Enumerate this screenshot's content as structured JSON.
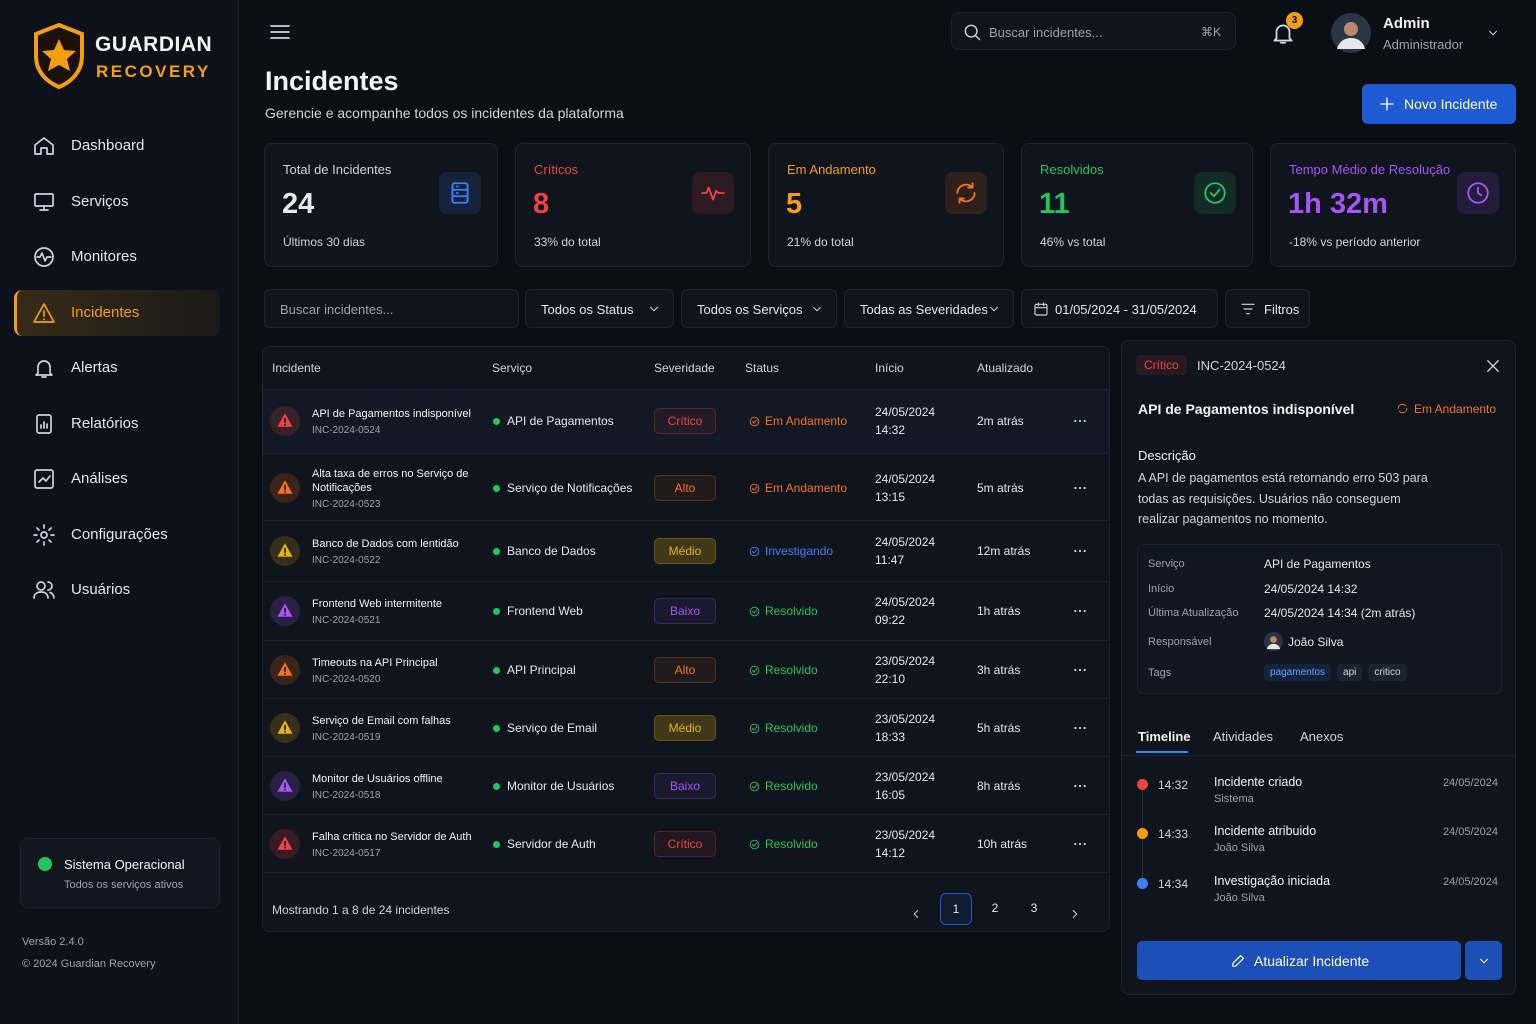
{
  "brand": {
    "name": "GUARDIAN",
    "sub": "RECOVERY"
  },
  "nav": [
    {
      "label": "Dashboard",
      "active": false
    },
    {
      "label": "Serviços",
      "active": false
    },
    {
      "label": "Monitores",
      "active": false
    },
    {
      "label": "Incidentes",
      "active": true
    },
    {
      "label": "Alertas",
      "active": false
    },
    {
      "label": "Relatórios",
      "active": false
    },
    {
      "label": "Análises",
      "active": false
    },
    {
      "label": "Configurações",
      "active": false
    },
    {
      "label": "Usuários",
      "active": false
    }
  ],
  "system_status": {
    "title": "Sistema Operacional",
    "subtitle": "Todos os serviços ativos"
  },
  "footer": {
    "version": "Versão 2.4.0",
    "copyright": "© 2024 Guardian Recovery"
  },
  "topbar": {
    "search": "Buscar incidentes...",
    "shortcut": "⌘K",
    "notifications": 3,
    "user_name": "Admin",
    "user_role": "Administrador"
  },
  "header": {
    "title": "Incidentes",
    "subtitle": "Gerencie e acompanhe todos os incidentes da plataforma",
    "button": "Novo Incidente"
  },
  "stats": [
    {
      "label": "Total de Incidentes",
      "value": 24,
      "note": "Últimos 30 dias",
      "color": "#3b82f6",
      "text_color": "#e5e7eb"
    },
    {
      "label": "Críticos",
      "value": 8,
      "note": "33% do total",
      "color": "#ef4444",
      "text_color": "#ef4444"
    },
    {
      "label": "Em Andamento",
      "value": 5,
      "note": "21% do total",
      "color": "#f97316",
      "text_color": "#f59e0b"
    },
    {
      "label": "Resolvidos",
      "value": 11,
      "note": "46% vs total",
      "color": "#22c55e",
      "text_color": "#22c55e"
    },
    {
      "label": "Tempo Médio de Resolução",
      "value": "1h 32m",
      "note": "-18% vs período anterior",
      "color": "#a855f7",
      "text_color": "#a855f7"
    }
  ],
  "filters": {
    "search": "Buscar incidentes...",
    "status": "Todos os Status",
    "services": "Todos os Serviços",
    "severities": "Todas as Severidades",
    "dates": "01/05/2024 - 31/05/2024",
    "button": "Filtros"
  },
  "table": {
    "columns": [
      "Incidente",
      "Serviço",
      "Severidade",
      "Status",
      "Início",
      "Atualizado"
    ],
    "rows": [
      {
        "title": "API de Pagamentos indisponível",
        "id": "INC-2024-0524",
        "service": "API de Pagamentos",
        "severity": "Crítico",
        "severity_color": "#ef4444",
        "status": "Em Andamento",
        "status_color": "#f97316",
        "date": "24/05/2024",
        "time": "14:32",
        "updated": "2m atrás"
      },
      {
        "title": "Alta taxa de erros no Serviço de Notificações",
        "id": "INC-2024-0523",
        "service": "Serviço de Notificações",
        "severity": "Alto",
        "severity_color": "#f97316",
        "status": "Em Andamento",
        "status_color": "#f97316",
        "date": "24/05/2024",
        "time": "13:15",
        "updated": "5m atrás"
      },
      {
        "title": "Banco de Dados com lentidão",
        "id": "INC-2024-0522",
        "service": "Banco de Dados",
        "severity": "Médio",
        "severity_color": "#eab308",
        "status": "Investigando",
        "status_color": "#3b82f6",
        "date": "24/05/2024",
        "time": "11:47",
        "updated": "12m atrás"
      },
      {
        "title": "Frontend Web intermitente",
        "id": "INC-2024-0521",
        "service": "Frontend Web",
        "severity": "Baixo",
        "severity_color": "#a855f7",
        "status": "Resolvido",
        "status_color": "#22c55e",
        "date": "24/05/2024",
        "time": "09:22",
        "updated": "1h atrás"
      },
      {
        "title": "Timeouts na API Principal",
        "id": "INC-2024-0520",
        "service": "API Principal",
        "severity": "Alto",
        "severity_color": "#f97316",
        "status": "Resolvido",
        "status_color": "#22c55e",
        "date": "23/05/2024",
        "time": "22:10",
        "updated": "3h atrás"
      },
      {
        "title": "Serviço de Email com falhas",
        "id": "INC-2024-0519",
        "service": "Serviço de Email",
        "severity": "Médio",
        "severity_color": "#eab308",
        "status": "Resolvido",
        "status_color": "#22c55e",
        "date": "23/05/2024",
        "time": "18:33",
        "updated": "5h atrás"
      },
      {
        "title": "Monitor de Usuários offline",
        "id": "INC-2024-0518",
        "service": "Monitor de Usuários",
        "severity": "Baixo",
        "severity_color": "#a855f7",
        "status": "Resolvido",
        "status_color": "#22c55e",
        "date": "23/05/2024",
        "time": "16:05",
        "updated": "8h atrás"
      },
      {
        "title": "Falha crítica no Servidor de Auth",
        "id": "INC-2024-0517",
        "service": "Servidor de Auth",
        "severity": "Crítico",
        "severity_color": "#ef4444",
        "status": "Resolvido",
        "status_color": "#22c55e",
        "date": "23/05/2024",
        "time": "14:12",
        "updated": "10h atrás"
      }
    ],
    "summary": "Mostrando 1 a 8 de 24 incidentes",
    "pages": [
      1,
      2,
      3
    ]
  },
  "detail": {
    "severity": "Crítico",
    "severity_color": "#ef4444",
    "id": "INC-2024-0524",
    "title": "API de Pagamentos indisponível",
    "status": "Em Andamento",
    "status_color": "#f97316",
    "description_label": "Descrição",
    "description": "A API de pagamentos está retornando erro 503 para todas as requisições. Usuários não conseguem realizar pagamentos no momento.",
    "fields": [
      {
        "label": "Serviço",
        "value": "API de Pagamentos"
      },
      {
        "label": "Início",
        "value": "24/05/2024 14:32"
      },
      {
        "label": "Última Atualização",
        "value": "24/05/2024 14:34 (2m atrás)"
      },
      {
        "label": "Responsável",
        "value": "João Silva"
      }
    ],
    "tags_label": "Tags",
    "tags": [
      "pagamentos",
      "api",
      "critico"
    ],
    "tabs": [
      "Timeline",
      "Atividades",
      "Anexos"
    ],
    "timeline": [
      {
        "time": "14:32",
        "title": "Incidente criado",
        "by": "Sistema",
        "date": "24/05/2024",
        "color": "#ef4444"
      },
      {
        "time": "14:33",
        "title": "Incidente atribuido",
        "by": "João Silva",
        "date": "24/05/2024",
        "color": "#f59e0b"
      },
      {
        "time": "14:34",
        "title": "Investigação iniciada",
        "by": "João Silva",
        "date": "24/05/2024",
        "color": "#3b82f6"
      }
    ],
    "button": "Atualizar Incidente"
  }
}
